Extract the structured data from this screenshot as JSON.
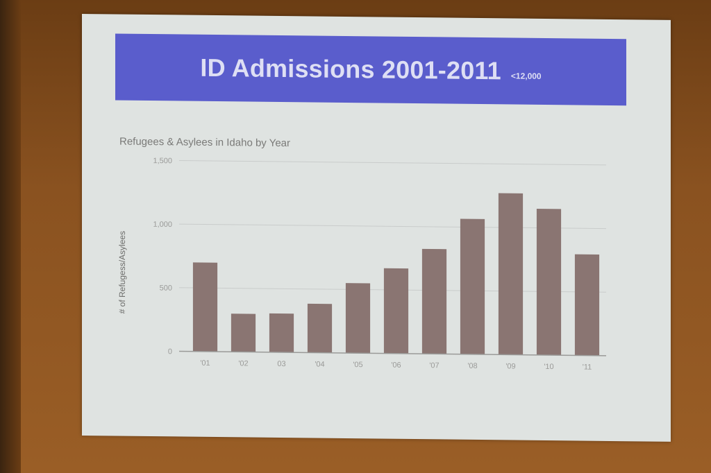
{
  "slide": {
    "title": "ID Admissions 2001-2011",
    "subtitle": "<12,000"
  },
  "chart_data": {
    "type": "bar",
    "title": "Refugees & Asylees in Idaho by Year",
    "xlabel": "",
    "ylabel": "# of Refugess/Asylees",
    "categories": [
      "'01",
      "'02",
      "03",
      "'04",
      "'05",
      "'06",
      "'07",
      "'08",
      "'09",
      "'10",
      "'11"
    ],
    "values": [
      700,
      300,
      305,
      385,
      550,
      670,
      825,
      1065,
      1270,
      1150,
      795
    ],
    "ylim": [
      0,
      1500
    ],
    "yticks": [
      0,
      500,
      1000,
      1500
    ],
    "ytick_labels": [
      "0",
      "500",
      "1,000",
      "1,500"
    ],
    "grid": true,
    "bar_color": "#8a7572"
  }
}
